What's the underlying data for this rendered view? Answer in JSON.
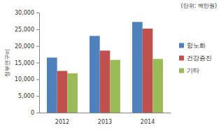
{
  "chart_data": {
    "type": "bar",
    "subtitle": "(단위: 백만원)",
    "y_label": "정부연구비",
    "categories": [
      "2012",
      "2013",
      "2014"
    ],
    "series": [
      {
        "name": "항노화",
        "color": "#4f81bd",
        "values": [
          16500,
          23000,
          27200
        ]
      },
      {
        "name": "건강증진",
        "color": "#c0504d",
        "values": [
          12500,
          18600,
          25200
        ]
      },
      {
        "name": "기타",
        "color": "#9bbb59",
        "values": [
          11800,
          15800,
          16100
        ]
      }
    ],
    "ylim": [
      0,
      30000
    ],
    "yticks": [
      0,
      {
        "value": 5000,
        "label": "5,000"
      },
      {
        "value": 10000,
        "label": "10,000"
      },
      {
        "value": 15000,
        "label": "15,000"
      },
      {
        "value": 20000,
        "label": "20,000"
      },
      {
        "value": 25000,
        "label": "25,000"
      },
      {
        "value": 30000,
        "label": "30,000"
      }
    ],
    "grid": false,
    "legend": "right"
  }
}
